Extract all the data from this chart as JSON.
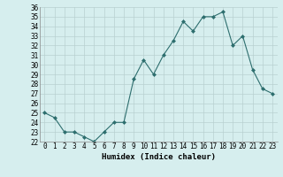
{
  "x": [
    0,
    1,
    2,
    3,
    4,
    5,
    6,
    7,
    8,
    9,
    10,
    11,
    12,
    13,
    14,
    15,
    16,
    17,
    18,
    19,
    20,
    21,
    22,
    23
  ],
  "y": [
    25.0,
    24.5,
    23.0,
    23.0,
    22.5,
    22.0,
    23.0,
    24.0,
    24.0,
    28.5,
    30.5,
    29.0,
    31.0,
    32.5,
    34.5,
    33.5,
    35.0,
    35.0,
    35.5,
    32.0,
    33.0,
    29.5,
    27.5,
    27.0
  ],
  "xlabel": "Humidex (Indice chaleur)",
  "ylim": [
    22,
    36
  ],
  "xlim": [
    -0.5,
    23.5
  ],
  "yticks": [
    22,
    23,
    24,
    25,
    26,
    27,
    28,
    29,
    30,
    31,
    32,
    33,
    34,
    35,
    36
  ],
  "xticks": [
    0,
    1,
    2,
    3,
    4,
    5,
    6,
    7,
    8,
    9,
    10,
    11,
    12,
    13,
    14,
    15,
    16,
    17,
    18,
    19,
    20,
    21,
    22,
    23
  ],
  "line_color": "#2d6e6e",
  "marker": "D",
  "marker_size": 2.0,
  "bg_color": "#d6eeee",
  "grid_color": "#b8d0d0",
  "label_fontsize": 6.5,
  "tick_fontsize": 5.5
}
